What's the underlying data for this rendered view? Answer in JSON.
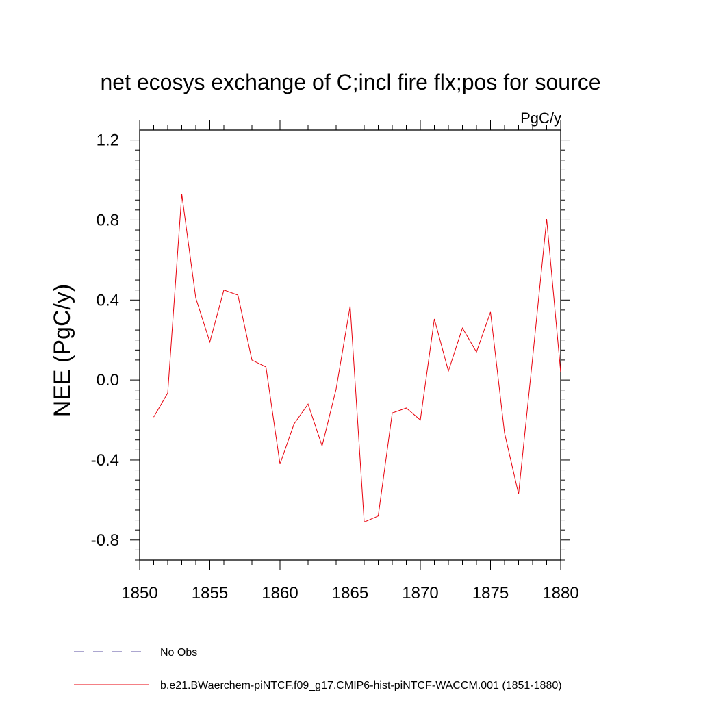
{
  "chart_data": {
    "type": "line",
    "title": "net ecosys exchange of C;incl fire flx;pos for source",
    "units_label": "PgC/y",
    "xlabel": "",
    "ylabel": "NEE  (PgC/y)",
    "xlim": [
      1850,
      1880
    ],
    "ylim": [
      -0.9,
      1.25
    ],
    "x_ticks": [
      1850,
      1855,
      1860,
      1865,
      1870,
      1875,
      1880
    ],
    "y_ticks": [
      -0.8,
      -0.4,
      0.0,
      0.4,
      0.8,
      1.2
    ],
    "y_tick_labels": [
      "-0.8",
      "-0.4",
      "0.0",
      "0.4",
      "0.8",
      "1.2"
    ],
    "grid": false,
    "series": [
      {
        "name": "b.e21.BWaerchem-piNTCF.f09_g17.CMIP6-hist-piNTCF-WACCM.001 (1851-1880)",
        "color": "#e8000b",
        "x": [
          1851,
          1852,
          1853,
          1854,
          1855,
          1856,
          1857,
          1858,
          1859,
          1860,
          1861,
          1862,
          1863,
          1864,
          1865,
          1866,
          1867,
          1868,
          1869,
          1870,
          1871,
          1872,
          1873,
          1874,
          1875,
          1876,
          1877,
          1878,
          1879,
          1880
        ],
        "y": [
          -0.185,
          -0.065,
          0.93,
          0.41,
          0.19,
          0.45,
          0.425,
          0.1,
          0.065,
          -0.42,
          -0.22,
          -0.12,
          -0.33,
          -0.045,
          0.37,
          -0.71,
          -0.68,
          -0.165,
          -0.14,
          -0.2,
          0.305,
          0.045,
          0.26,
          0.14,
          0.34,
          -0.265,
          -0.57,
          0.11,
          0.805,
          0.04
        ]
      }
    ],
    "legend": {
      "placement": "bottom-left",
      "entries": [
        {
          "label": "No Obs",
          "color": "#5a4fa0",
          "style": "dashed"
        },
        {
          "label": "b.e21.BWaerchem-piNTCF.f09_g17.CMIP6-hist-piNTCF-WACCM.001 (1851-1880)",
          "color": "#e8000b",
          "style": "solid"
        }
      ]
    }
  }
}
